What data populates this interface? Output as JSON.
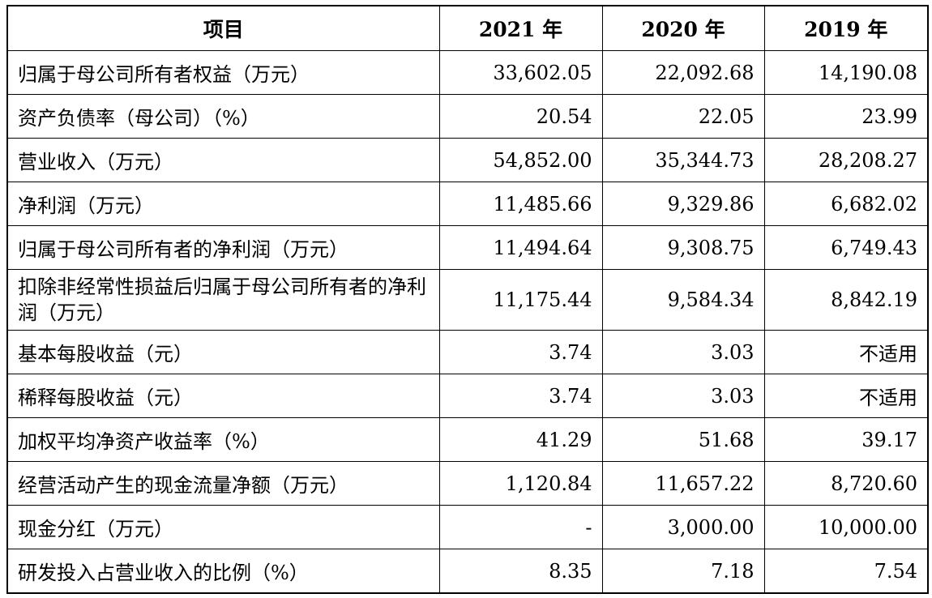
{
  "table": {
    "headers": [
      "项目",
      "2021 年",
      "2020 年",
      "2019 年"
    ],
    "rows": [
      {
        "label": "归属于母公司所有者权益（万元）",
        "values": [
          "33,602.05",
          "22,092.68",
          "14,190.08"
        ]
      },
      {
        "label": "资产负债率（母公司）（%）",
        "values": [
          "20.54",
          "22.05",
          "23.99"
        ]
      },
      {
        "label": "营业收入（万元）",
        "values": [
          "54,852.00",
          "35,344.73",
          "28,208.27"
        ]
      },
      {
        "label": "净利润（万元）",
        "values": [
          "11,485.66",
          "9,329.86",
          "6,682.02"
        ]
      },
      {
        "label": "归属于母公司所有者的净利润（万元）",
        "values": [
          "11,494.64",
          "9,308.75",
          "6,749.43"
        ]
      },
      {
        "label": "扣除非经常性损益后归属于母公司所有者的净利润（万元）",
        "values": [
          "11,175.44",
          "9,584.34",
          "8,842.19"
        ]
      },
      {
        "label": "基本每股收益（元）",
        "values": [
          "3.74",
          "3.03",
          "不适用"
        ]
      },
      {
        "label": "稀释每股收益（元）",
        "values": [
          "3.74",
          "3.03",
          "不适用"
        ]
      },
      {
        "label": "加权平均净资产收益率（%）",
        "values": [
          "41.29",
          "51.68",
          "39.17"
        ]
      },
      {
        "label": "经营活动产生的现金流量净额（万元）",
        "values": [
          "1,120.84",
          "11,657.22",
          "8,720.60"
        ]
      },
      {
        "label": "现金分红（万元）",
        "values": [
          "-",
          "3,000.00",
          "10,000.00"
        ]
      },
      {
        "label": "研发投入占营业收入的比例（%）",
        "values": [
          "8.35",
          "7.18",
          "7.54"
        ]
      }
    ]
  }
}
